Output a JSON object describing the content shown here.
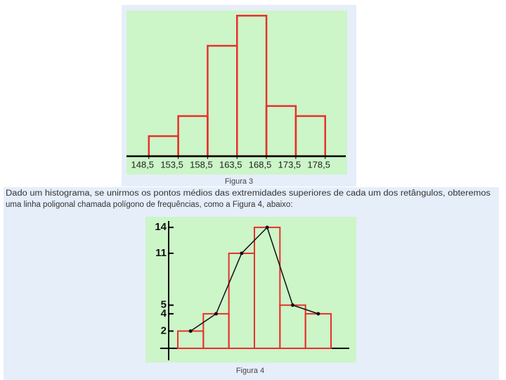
{
  "chart_data": [
    {
      "type": "histogram",
      "caption": "Figura 3",
      "bins": [
        148.5,
        153.5,
        158.5,
        163.5,
        168.5,
        173.5,
        178.5
      ],
      "values": [
        2,
        4,
        11,
        14,
        5,
        4
      ],
      "color": "#e8302c",
      "xlim": [
        144.7,
        182
      ],
      "ylim": [
        0,
        15
      ],
      "xticks": [
        {
          "value": 148.5,
          "label": "148,5"
        },
        {
          "value": 153.5,
          "label": "153,5"
        },
        {
          "value": 158.5,
          "label": "158,5"
        },
        {
          "value": 163.5,
          "label": "163,5"
        },
        {
          "value": 168.5,
          "label": "168,5"
        },
        {
          "value": 173.5,
          "label": "173,5"
        },
        {
          "value": 178.5,
          "label": "178,5"
        }
      ]
    },
    {
      "type": "bar-polygon",
      "caption": "Figura 4",
      "categories": [
        null,
        null,
        null,
        null,
        null,
        null
      ],
      "values": [
        2,
        4,
        11,
        14,
        5,
        4
      ],
      "color": "#e8302c",
      "line_color": "#111111",
      "ylim": [
        0,
        14.5
      ],
      "yticks": [
        2,
        4,
        5,
        11,
        14
      ]
    }
  ],
  "text": [
    "Dado um histograma, se unirmos os pontos médios das extremidades superiores de cada um dos retângulos, obteremos",
    "uma linha poligonal chamada polígono de frequências, como a Figura 4, abaixo:"
  ]
}
